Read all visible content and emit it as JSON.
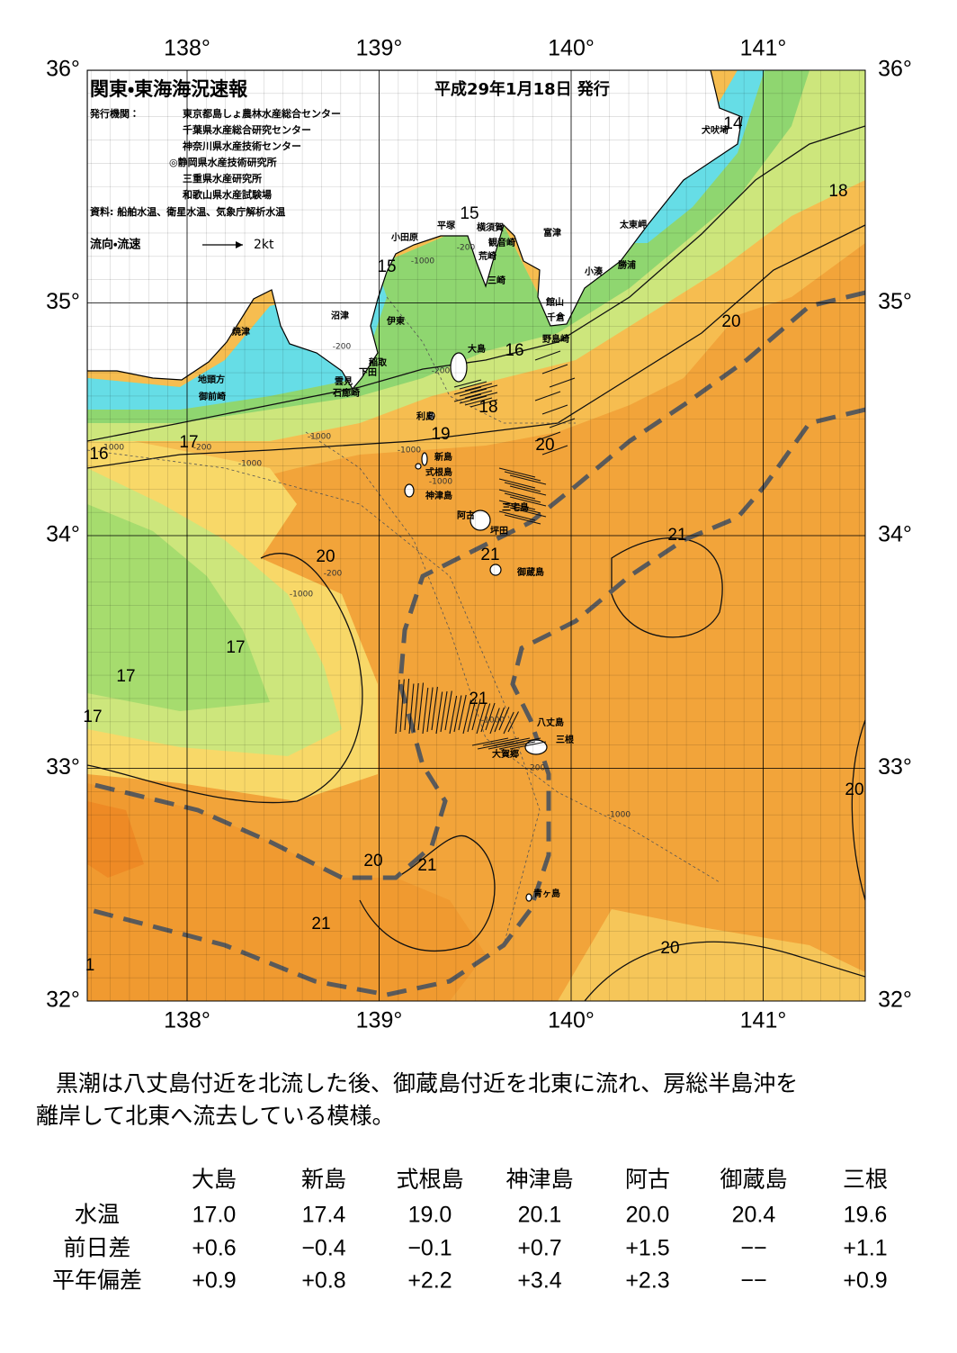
{
  "header": {
    "title": "関東・東海海況速報",
    "date": "平成29年1月18日 発行",
    "issuer_label": "発行機関：",
    "issuers": [
      "東京都島しょ農林水産総合センター",
      "千葉県水産総合研究センター",
      "神奈川県水産技術センター",
      "◎静岡県水産技術研究所",
      "三重県水産研究所",
      "和歌山県水産試験場"
    ],
    "source": "資料: 船舶水温、衛星水温、気象庁解析水温",
    "legend_label": "流向・流速",
    "legend_speed": "2kt"
  },
  "map": {
    "lon_ticks": [
      {
        "value": 138,
        "label": "138°"
      },
      {
        "value": 139,
        "label": "139°"
      },
      {
        "value": 140,
        "label": "140°"
      },
      {
        "value": 141,
        "label": "141°"
      }
    ],
    "lat_ticks": [
      {
        "value": 36,
        "label": "36°"
      },
      {
        "value": 35,
        "label": "35°"
      },
      {
        "value": 34,
        "label": "34°"
      },
      {
        "value": 33,
        "label": "33°"
      },
      {
        "value": 32,
        "label": "32°"
      }
    ],
    "places": [
      "犬吠埼",
      "太東岬",
      "勝浦",
      "小湊",
      "富津",
      "館山",
      "千倉",
      "野島崎",
      "横須賀",
      "観音崎",
      "荒崎",
      "三崎",
      "平塚",
      "小田原",
      "沼津",
      "伊東",
      "稲取",
      "下田",
      "雲見",
      "石廊崎",
      "焼津",
      "地頭方",
      "御前崎",
      "大島",
      "利島",
      "新島",
      "式根島",
      "神津島",
      "阿古",
      "三宅島",
      "坪田",
      "御蔵島",
      "八丈島",
      "三根",
      "大賀郷",
      "青ヶ島"
    ],
    "temperature_labels": [
      14,
      15,
      15,
      16,
      18,
      19,
      20,
      20,
      18,
      16,
      17,
      20,
      21,
      21,
      17,
      17,
      17,
      21,
      20,
      20,
      21,
      21,
      20,
      1
    ],
    "isobath_labels": [
      "-200",
      "-1000",
      "-200",
      "-200",
      "-1000",
      "-200",
      "-1000",
      "-1000",
      "-1000",
      "-200",
      "-1000",
      "-1000",
      "-1000",
      "-200",
      "-1000"
    ]
  },
  "commentary": [
    "黒潮は八丈島付近を北流した後、御蔵島付近を北東に流れ、房総半島沖を",
    "離岸して北東へ流去している模様。"
  ],
  "table": {
    "header": [
      "大島",
      "新島",
      "式根島",
      "神津島",
      "阿古",
      "御蔵島",
      "三根"
    ],
    "rows": [
      [
        "水温",
        "17.0",
        "17.4",
        "19.0",
        "20.1",
        "20.0",
        "20.4",
        "19.6"
      ],
      [
        "前日差",
        "+0.6",
        "−0.4",
        "−0.1",
        "+0.7",
        "+1.5",
        "−−",
        "+1.1"
      ],
      [
        "平年偏差",
        "+0.9",
        "+0.8",
        "+2.2",
        "+3.4",
        "+2.3",
        "−−",
        "+0.9"
      ]
    ]
  }
}
